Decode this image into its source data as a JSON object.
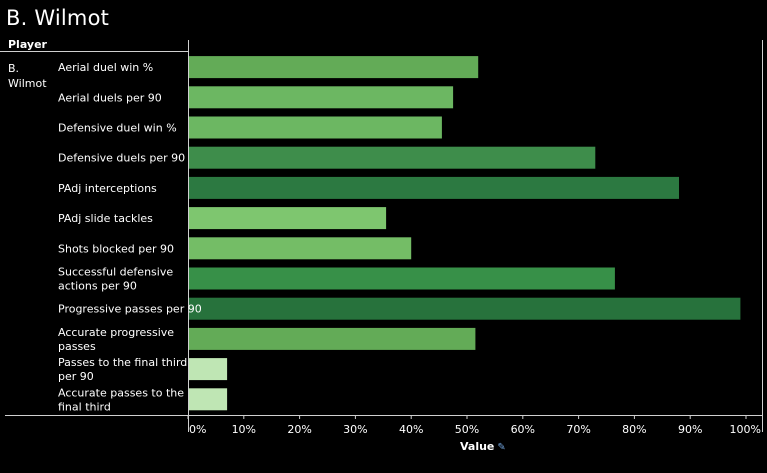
{
  "title": "B. Wilmot",
  "column_header": "Player",
  "player": "B. Wilmot",
  "axis_title": "Value",
  "icons": {
    "axis_pin": "pin-icon"
  },
  "chart_data": {
    "type": "bar",
    "orientation": "horizontal",
    "categories": [
      "Aerial duel win %",
      "Aerial duels per 90",
      "Defensive duel win %",
      "Defensive duels per 90",
      "PAdj interceptions",
      "PAdj slide tackles",
      "Shots blocked per 90",
      "Successful defensive actions per 90",
      "Progressive passes per 90",
      "Accurate progressive passes",
      "Passes to the final third per 90",
      "Accurate passes to the final third"
    ],
    "category_lines": [
      [
        "Aerial duel win %"
      ],
      [
        "Aerial duels per 90"
      ],
      [
        "Defensive duel win %"
      ],
      [
        "Defensive duels per 90"
      ],
      [
        "PAdj interceptions"
      ],
      [
        "PAdj slide tackles"
      ],
      [
        "Shots blocked per 90"
      ],
      [
        "Successful defensive",
        "actions per 90"
      ],
      [
        "Progressive passes per 90"
      ],
      [
        "Accurate progressive",
        "passes"
      ],
      [
        "Passes to the final third",
        "per 90"
      ],
      [
        "Accurate passes to the",
        "final third"
      ]
    ],
    "values": [
      0.52,
      0.475,
      0.455,
      0.73,
      0.88,
      0.355,
      0.4,
      0.765,
      0.99,
      0.515,
      0.07,
      0.07
    ],
    "colors": [
      "#63ab57",
      "#6cb762",
      "#6cb762",
      "#3e8d4b",
      "#2c7941",
      "#7ec66f",
      "#74bd66",
      "#379048",
      "#27723c",
      "#63ab57",
      "#bfe6b4",
      "#bfe6b4"
    ],
    "xlim": [
      0,
      1
    ],
    "xticks": [
      0,
      0.1,
      0.2,
      0.3,
      0.4,
      0.5,
      0.6,
      0.7,
      0.8,
      0.9,
      1.0
    ],
    "xtick_labels": [
      "0%",
      "10%",
      "20%",
      "30%",
      "40%",
      "50%",
      "60%",
      "70%",
      "80%",
      "90%",
      "100%"
    ],
    "xlabel": "Value",
    "grid": false
  }
}
